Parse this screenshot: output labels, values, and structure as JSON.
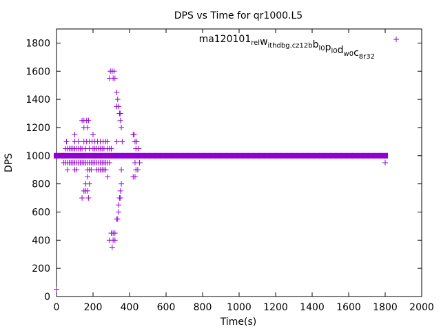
{
  "chart_data": {
    "type": "scatter",
    "title": "DPS vs Time for qr1000.L5",
    "xlabel": "Time(s)",
    "ylabel": "DPS",
    "xlim": [
      0,
      2000
    ],
    "ylim": [
      0,
      1900
    ],
    "xticks": [
      0,
      200,
      400,
      600,
      800,
      1000,
      1200,
      1400,
      1600,
      1800,
      2000
    ],
    "yticks": [
      0,
      200,
      400,
      600,
      800,
      1000,
      1200,
      1400,
      1600,
      1800
    ],
    "grid": false,
    "legend_position": "top-right",
    "marker": "plus",
    "series": [
      {
        "name": "ma120101_rel_withdbg.cz12b_bl0_pl0_dw0_c8r32",
        "color": "#9400d3",
        "points": [
          [
            0,
            50
          ],
          [
            0,
            1000
          ],
          [
            30,
            1000
          ],
          [
            60,
            1000
          ],
          [
            90,
            1000
          ],
          [
            120,
            1000
          ],
          [
            150,
            1000
          ],
          [
            180,
            1000
          ],
          [
            210,
            1000
          ],
          [
            240,
            1000
          ],
          [
            270,
            1000
          ],
          [
            300,
            1000
          ],
          [
            330,
            1000
          ],
          [
            360,
            1000
          ],
          [
            390,
            1000
          ],
          [
            420,
            1000
          ],
          [
            450,
            1000
          ],
          [
            480,
            1000
          ],
          [
            510,
            1000
          ],
          [
            540,
            1000
          ],
          [
            570,
            1000
          ],
          [
            600,
            1000
          ],
          [
            630,
            1000
          ],
          [
            660,
            1000
          ],
          [
            690,
            1000
          ],
          [
            720,
            1000
          ],
          [
            750,
            1000
          ],
          [
            780,
            1000
          ],
          [
            810,
            1000
          ],
          [
            840,
            1000
          ],
          [
            870,
            1000
          ],
          [
            900,
            1000
          ],
          [
            930,
            1000
          ],
          [
            960,
            1000
          ],
          [
            990,
            1000
          ],
          [
            1020,
            1000
          ],
          [
            1050,
            1000
          ],
          [
            1080,
            1000
          ],
          [
            1110,
            1000
          ],
          [
            1140,
            1000
          ],
          [
            1170,
            1000
          ],
          [
            1200,
            1000
          ],
          [
            1230,
            1000
          ],
          [
            1260,
            1000
          ],
          [
            1290,
            1000
          ],
          [
            1320,
            1000
          ],
          [
            1350,
            1000
          ],
          [
            1380,
            1000
          ],
          [
            1410,
            1000
          ],
          [
            1440,
            1000
          ],
          [
            1470,
            1000
          ],
          [
            1500,
            1000
          ],
          [
            1530,
            1000
          ],
          [
            1560,
            1000
          ],
          [
            1590,
            1000
          ],
          [
            1620,
            1000
          ],
          [
            1650,
            1000
          ],
          [
            1680,
            1000
          ],
          [
            1710,
            1000
          ],
          [
            1740,
            1000
          ],
          [
            1770,
            1000
          ],
          [
            1800,
            1000
          ],
          [
            1800,
            950
          ],
          [
            40,
            950
          ],
          [
            50,
            950
          ],
          [
            60,
            950
          ],
          [
            70,
            950
          ],
          [
            80,
            950
          ],
          [
            90,
            950
          ],
          [
            100,
            950
          ],
          [
            110,
            950
          ],
          [
            120,
            950
          ],
          [
            130,
            950
          ],
          [
            140,
            950
          ],
          [
            150,
            950
          ],
          [
            160,
            950
          ],
          [
            170,
            950
          ],
          [
            180,
            950
          ],
          [
            190,
            950
          ],
          [
            200,
            950
          ],
          [
            210,
            950
          ],
          [
            220,
            950
          ],
          [
            230,
            950
          ],
          [
            240,
            950
          ],
          [
            250,
            950
          ],
          [
            260,
            950
          ],
          [
            270,
            950
          ],
          [
            280,
            950
          ],
          [
            290,
            950
          ],
          [
            40,
            1000
          ],
          [
            45,
            1000
          ],
          [
            50,
            1050
          ],
          [
            60,
            1050
          ],
          [
            70,
            1050
          ],
          [
            80,
            1050
          ],
          [
            90,
            1050
          ],
          [
            100,
            1050
          ],
          [
            110,
            1050
          ],
          [
            120,
            1050
          ],
          [
            130,
            1050
          ],
          [
            140,
            1050
          ],
          [
            160,
            1050
          ],
          [
            180,
            1050
          ],
          [
            200,
            1050
          ],
          [
            210,
            1050
          ],
          [
            220,
            1050
          ],
          [
            230,
            1050
          ],
          [
            240,
            1050
          ],
          [
            250,
            1050
          ],
          [
            260,
            1050
          ],
          [
            280,
            1050
          ],
          [
            290,
            1050
          ],
          [
            300,
            1050
          ],
          [
            55,
            1100
          ],
          [
            100,
            1100
          ],
          [
            120,
            1100
          ],
          [
            150,
            1100
          ],
          [
            165,
            1100
          ],
          [
            180,
            1100
          ],
          [
            195,
            1100
          ],
          [
            210,
            1100
          ],
          [
            225,
            1100
          ],
          [
            240,
            1100
          ],
          [
            255,
            1100
          ],
          [
            270,
            1100
          ],
          [
            280,
            1100
          ],
          [
            100,
            1150
          ],
          [
            200,
            1150
          ],
          [
            140,
            1250
          ],
          [
            150,
            1250
          ],
          [
            165,
            1250
          ],
          [
            175,
            1250
          ],
          [
            150,
            1200
          ],
          [
            170,
            1200
          ],
          [
            60,
            900
          ],
          [
            100,
            900
          ],
          [
            110,
            900
          ],
          [
            170,
            900
          ],
          [
            180,
            900
          ],
          [
            190,
            900
          ],
          [
            220,
            900
          ],
          [
            230,
            900
          ],
          [
            240,
            900
          ],
          [
            250,
            900
          ],
          [
            260,
            900
          ],
          [
            270,
            900
          ],
          [
            170,
            850
          ],
          [
            280,
            850
          ],
          [
            160,
            800
          ],
          [
            180,
            800
          ],
          [
            150,
            750
          ],
          [
            160,
            750
          ],
          [
            170,
            750
          ],
          [
            140,
            700
          ],
          [
            175,
            700
          ],
          [
            200,
            1000
          ],
          [
            250,
            1000
          ],
          [
            285,
            1000
          ],
          [
            290,
            1550
          ],
          [
            310,
            1550
          ],
          [
            320,
            1550
          ],
          [
            295,
            1600
          ],
          [
            305,
            1600
          ],
          [
            315,
            1600
          ],
          [
            330,
            1450
          ],
          [
            335,
            1400
          ],
          [
            330,
            1350
          ],
          [
            340,
            1350
          ],
          [
            345,
            1300
          ],
          [
            350,
            1300
          ],
          [
            350,
            1250
          ],
          [
            355,
            1200
          ],
          [
            330,
            1100
          ],
          [
            360,
            1100
          ],
          [
            355,
            900
          ],
          [
            355,
            800
          ],
          [
            350,
            750
          ],
          [
            345,
            700
          ],
          [
            350,
            700
          ],
          [
            340,
            650
          ],
          [
            340,
            600
          ],
          [
            330,
            550
          ],
          [
            335,
            550
          ],
          [
            300,
            450
          ],
          [
            310,
            450
          ],
          [
            320,
            450
          ],
          [
            290,
            400
          ],
          [
            310,
            400
          ],
          [
            320,
            400
          ],
          [
            305,
            350
          ],
          [
            420,
            1150
          ],
          [
            425,
            1150
          ],
          [
            430,
            1100
          ],
          [
            440,
            1100
          ],
          [
            435,
            1050
          ],
          [
            450,
            1050
          ],
          [
            430,
            950
          ],
          [
            455,
            950
          ],
          [
            435,
            900
          ],
          [
            445,
            900
          ],
          [
            420,
            850
          ],
          [
            430,
            850
          ]
        ]
      }
    ]
  },
  "legend": {
    "label_parts": [
      {
        "text": "ma120101",
        "sub": false
      },
      {
        "text": "rel",
        "sub": true
      },
      {
        "text": "w",
        "sub": false
      },
      {
        "text": "ithdbg.cz12b",
        "sub": true
      },
      {
        "text": "b",
        "sub": false
      },
      {
        "text": "l0",
        "sub": true
      },
      {
        "text": "p",
        "sub": false
      },
      {
        "text": "l0",
        "sub": true
      },
      {
        "text": "d",
        "sub": false
      },
      {
        "text": "w0",
        "sub": true
      },
      {
        "text": "c",
        "sub": false
      },
      {
        "text": "8r32",
        "sub": true
      }
    ]
  }
}
